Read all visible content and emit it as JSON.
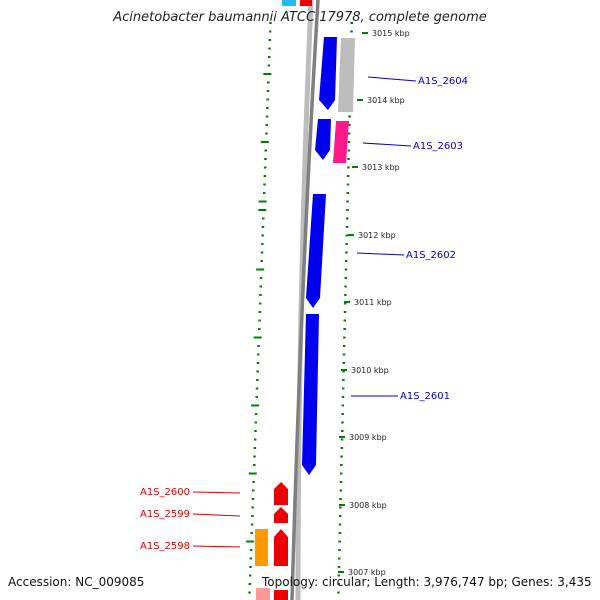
{
  "header": {
    "title": "Acinetobacter baumannii ATCC 17978, complete genome"
  },
  "footer": {
    "accession": "Accession: NC_009085",
    "summary": "Topology: circular; Length: 3,976,747 bp; Genes: 3,435"
  },
  "colors": {
    "forward_strand": "#0000ee",
    "reverse_strand": "#ee0000",
    "backbone": "#808080",
    "gc_ticks": "#008000",
    "light_gray": "#bdbdbd",
    "magenta": "#ff1a8c",
    "orange": "#ff9900",
    "cyan": "#22bbee",
    "pink": "#ff9999"
  },
  "ruler": {
    "ticks": [
      {
        "label": "3015 kbp"
      },
      {
        "label": "3014 kbp"
      },
      {
        "label": "3013 kbp"
      },
      {
        "label": "3012 kbp"
      },
      {
        "label": "3011 kbp"
      },
      {
        "label": "3010 kbp"
      },
      {
        "label": "3009 kbp"
      },
      {
        "label": "3008 kbp"
      },
      {
        "label": "3007 kbp"
      }
    ]
  },
  "gene_labels": {
    "forward": [
      "A1S_2604",
      "A1S_2603",
      "A1S_2602",
      "A1S_2601"
    ],
    "reverse": [
      "A1S_2600",
      "A1S_2599",
      "A1S_2598"
    ]
  }
}
